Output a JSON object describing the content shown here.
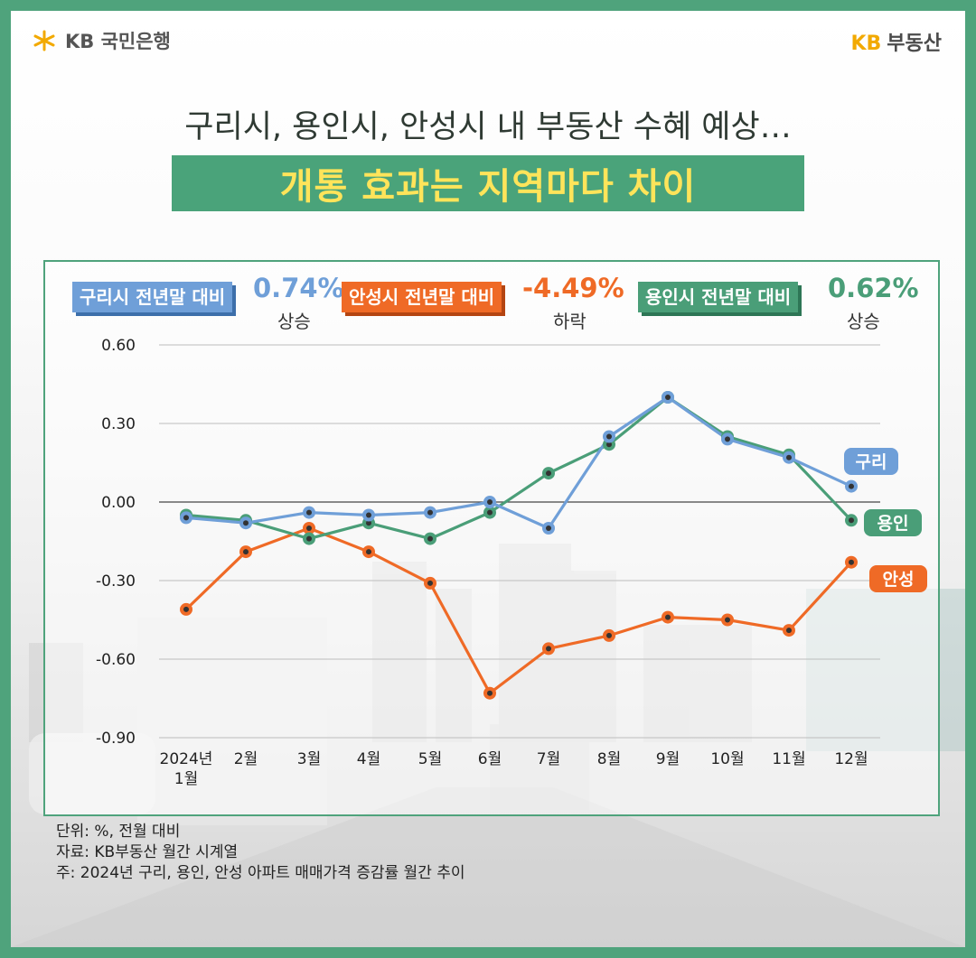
{
  "header": {
    "left_logo_text": "KB 국민은행",
    "right_logo_kb": "KB",
    "right_logo_text": "부동산"
  },
  "title": {
    "line1": "구리시, 용인시, 안성시 내 부동산 수혜 예상…",
    "line2": "개통 효과는 지역마다 차이"
  },
  "summary": [
    {
      "label": "구리시 전년말 대비",
      "value": "0.74%",
      "direction": "상승",
      "color": "#6f9fd8"
    },
    {
      "label": "안성시 전년말 대비",
      "value": "-4.49%",
      "direction": "하락",
      "color": "#ef6a26"
    },
    {
      "label": "용인시 전년말 대비",
      "value": "0.62%",
      "direction": "상승",
      "color": "#4a9e78"
    }
  ],
  "chart_data": {
    "type": "line",
    "categories": [
      "2024년 1월",
      "2월",
      "3월",
      "4월",
      "5월",
      "6월",
      "7월",
      "8월",
      "9월",
      "10월",
      "11월",
      "12월"
    ],
    "y_ticks": [
      "0.60",
      "0.30",
      "0.00",
      "-0.30",
      "-0.60",
      "-0.90"
    ],
    "ylim": [
      -0.9,
      0.6
    ],
    "series": [
      {
        "name": "구리",
        "color": "#6f9fd8",
        "values": [
          -0.06,
          -0.08,
          -0.04,
          -0.05,
          -0.04,
          0.0,
          -0.1,
          0.25,
          0.4,
          0.24,
          0.17,
          0.06
        ]
      },
      {
        "name": "용인",
        "color": "#4a9e78",
        "values": [
          -0.05,
          -0.07,
          -0.14,
          -0.08,
          -0.14,
          -0.04,
          0.11,
          0.22,
          0.4,
          0.25,
          0.18,
          -0.07
        ]
      },
      {
        "name": "안성",
        "color": "#ef6a26",
        "values": [
          -0.41,
          -0.19,
          -0.1,
          -0.19,
          -0.31,
          -0.73,
          -0.56,
          -0.51,
          -0.44,
          -0.45,
          -0.49,
          -0.23
        ]
      }
    ],
    "grid": true
  },
  "notes": [
    "단위: %, 전월 대비",
    "자료: KB부동산 월간 시계열",
    "주: 2024년 구리, 용인, 안성 아파트 매매가격 증감률 월간 추이"
  ]
}
